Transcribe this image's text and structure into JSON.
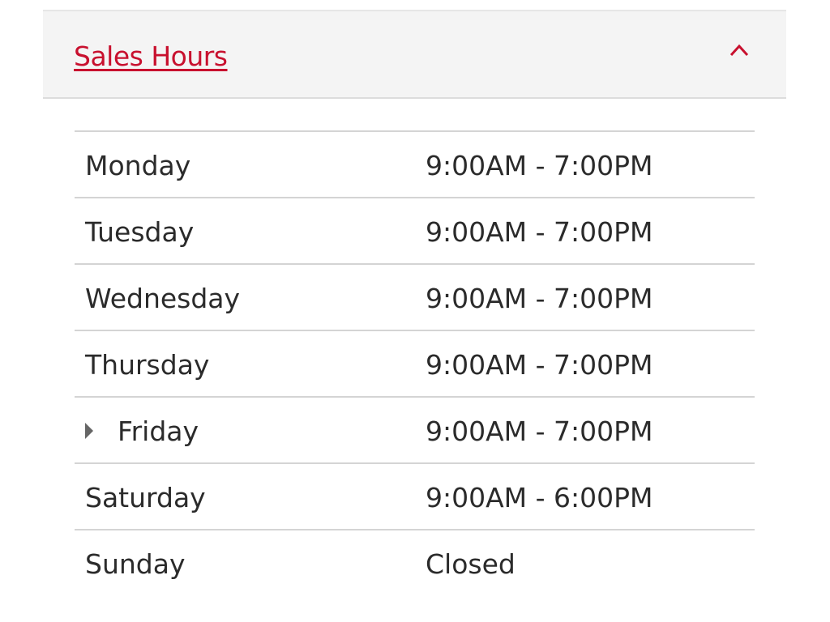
{
  "header": {
    "title": "Sales Hours",
    "toggle_icon": "chevron-up-icon",
    "accent_color": "#c8102e"
  },
  "hours": [
    {
      "day": "Monday",
      "hours": "9:00AM - 7:00PM",
      "current": false
    },
    {
      "day": "Tuesday",
      "hours": "9:00AM - 7:00PM",
      "current": false
    },
    {
      "day": "Wednesday",
      "hours": "9:00AM - 7:00PM",
      "current": false
    },
    {
      "day": "Thursday",
      "hours": "9:00AM - 7:00PM",
      "current": false
    },
    {
      "day": "Friday",
      "hours": "9:00AM - 7:00PM",
      "current": true
    },
    {
      "day": "Saturday",
      "hours": "9:00AM - 6:00PM",
      "current": false
    },
    {
      "day": "Sunday",
      "hours": "Closed",
      "current": false
    }
  ]
}
